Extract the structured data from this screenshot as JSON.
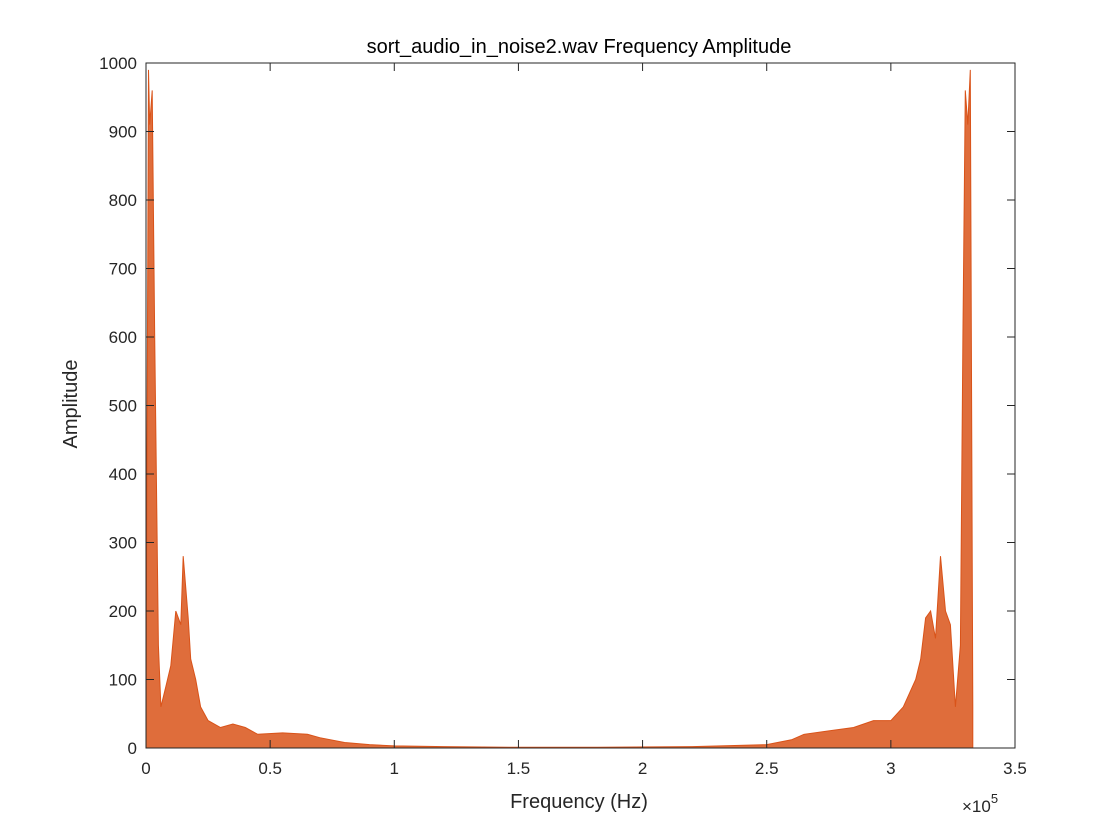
{
  "chart_data": {
    "type": "area",
    "title": "sort_audio_in_noise2.wav Frequency Amplitude",
    "xlabel": "Frequency (Hz)",
    "ylabel": "Amplitude",
    "x_exponent_base": "×10",
    "x_exponent_power": "5",
    "xlim": [
      0,
      350000
    ],
    "ylim": [
      0,
      1000
    ],
    "x_ticks": [
      0,
      50000,
      100000,
      150000,
      200000,
      250000,
      300000,
      350000
    ],
    "x_tick_labels": [
      "0",
      "0.5",
      "1",
      "1.5",
      "2",
      "2.5",
      "3",
      "3.5"
    ],
    "y_ticks": [
      0,
      100,
      200,
      300,
      400,
      500,
      600,
      700,
      800,
      900,
      1000
    ],
    "y_tick_labels": [
      "0",
      "100",
      "200",
      "300",
      "400",
      "500",
      "600",
      "700",
      "800",
      "900",
      "1000"
    ],
    "grid": false,
    "series_color": "#D95319",
    "series": [
      {
        "x": [
          0,
          1000,
          1500,
          2500,
          3500,
          5000,
          6000,
          8000,
          10000,
          12000,
          14000,
          15000,
          17000,
          18000,
          20000,
          22000,
          25000,
          30000,
          35000,
          40000,
          45000,
          55000,
          65000,
          70000,
          80000,
          90000,
          100000,
          120000,
          150000,
          166000,
          182000,
          220000,
          250000,
          260000,
          265000,
          275000,
          285000,
          293000,
          300000,
          305000,
          310000,
          312000,
          314000,
          316000,
          318000,
          320000,
          322000,
          324000,
          326000,
          328000,
          329000,
          330000,
          331000,
          332000,
          333000
        ],
        "y": [
          60,
          990,
          910,
          960,
          600,
          150,
          60,
          90,
          120,
          200,
          180,
          280,
          190,
          130,
          100,
          60,
          40,
          30,
          35,
          30,
          20,
          22,
          20,
          15,
          8,
          5,
          3,
          2,
          1,
          1,
          1,
          2,
          5,
          12,
          20,
          25,
          30,
          40,
          40,
          60,
          100,
          130,
          190,
          200,
          160,
          280,
          200,
          180,
          60,
          150,
          600,
          960,
          910,
          990,
          60
        ]
      }
    ]
  }
}
